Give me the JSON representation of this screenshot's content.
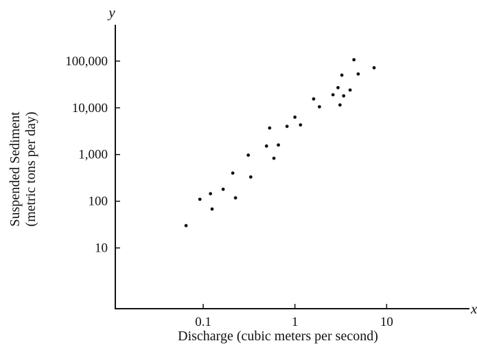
{
  "chart_data": {
    "type": "scatter",
    "xscale": "log",
    "yscale": "log",
    "xlabel": "Discharge (cubic meters per second)",
    "ylabel_line1": "Suspended Sediment",
    "ylabel_line2": "(metric tons per day)",
    "x_axis_letter": "x",
    "y_axis_letter": "y",
    "xlim": [
      0.011,
      80
    ],
    "ylim": [
      0.5,
      600000
    ],
    "x_ticks": [
      {
        "value": 0.1,
        "label": "0.1"
      },
      {
        "value": 1,
        "label": "1"
      },
      {
        "value": 10,
        "label": "10"
      }
    ],
    "y_ticks": [
      {
        "value": 10,
        "label": "10"
      },
      {
        "value": 100,
        "label": "100"
      },
      {
        "value": 1000,
        "label": "1,000"
      },
      {
        "value": 10000,
        "label": "10,000"
      },
      {
        "value": 100000,
        "label": "100,000"
      }
    ],
    "points": [
      {
        "x": 0.065,
        "y": 30
      },
      {
        "x": 0.092,
        "y": 110
      },
      {
        "x": 0.12,
        "y": 145
      },
      {
        "x": 0.125,
        "y": 68
      },
      {
        "x": 0.165,
        "y": 180
      },
      {
        "x": 0.21,
        "y": 400
      },
      {
        "x": 0.225,
        "y": 118
      },
      {
        "x": 0.31,
        "y": 970
      },
      {
        "x": 0.33,
        "y": 330
      },
      {
        "x": 0.49,
        "y": 1520
      },
      {
        "x": 0.53,
        "y": 3700
      },
      {
        "x": 0.59,
        "y": 830
      },
      {
        "x": 0.66,
        "y": 1600
      },
      {
        "x": 0.82,
        "y": 4000
      },
      {
        "x": 1.0,
        "y": 6300
      },
      {
        "x": 1.15,
        "y": 4300
      },
      {
        "x": 1.6,
        "y": 15500
      },
      {
        "x": 1.85,
        "y": 10500
      },
      {
        "x": 2.6,
        "y": 19000
      },
      {
        "x": 2.95,
        "y": 27000
      },
      {
        "x": 3.1,
        "y": 11500
      },
      {
        "x": 3.25,
        "y": 50000
      },
      {
        "x": 3.4,
        "y": 18000
      },
      {
        "x": 4.0,
        "y": 24000
      },
      {
        "x": 4.4,
        "y": 107000
      },
      {
        "x": 4.9,
        "y": 53000
      },
      {
        "x": 7.3,
        "y": 72000
      }
    ]
  }
}
